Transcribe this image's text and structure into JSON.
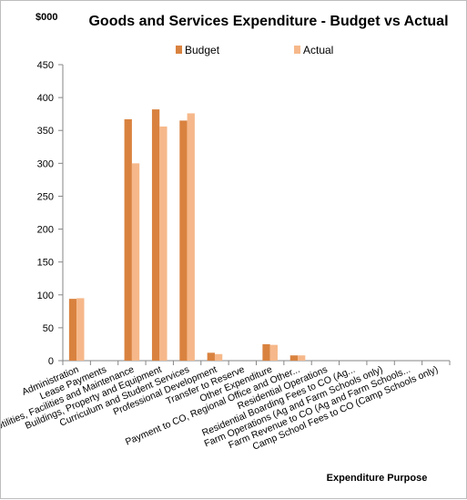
{
  "chart_data": {
    "type": "bar",
    "title": "Goods and Services Expenditure - Budget vs Actual",
    "ylabel": "$000",
    "xlabel": "Expenditure Purpose",
    "ylim": [
      0,
      450
    ],
    "yticks": [
      0,
      50,
      100,
      150,
      200,
      250,
      300,
      350,
      400,
      450
    ],
    "grid": false,
    "legend": "top",
    "categories": [
      "Administration",
      "Lease Payments",
      "Utilities, Facilities and Maintenance",
      "Buildings, Property and Equipment",
      "Curriculum and Student Services",
      "Professional Development",
      "Transfer to Reserve",
      "Other Expenditure",
      "Payment to CO, Regional Office and Other...",
      "Residential Operations",
      "Residential Boarding Fees to CO (Ag...",
      "Farm Operations (Ag and Farm Schools only)",
      "Farm Revenue to CO (Ag and Farm Schools...",
      "Camp School Fees to CO (Camp Schools only)"
    ],
    "series": [
      {
        "name": "Budget",
        "color": "#D9823F",
        "values": [
          94,
          0,
          367,
          382,
          365,
          12,
          0,
          25,
          8,
          0,
          0,
          0,
          0,
          0
        ]
      },
      {
        "name": "Actual",
        "color": "#F6B88A",
        "values": [
          95,
          0,
          300,
          356,
          376,
          10,
          0,
          24,
          8,
          0,
          0,
          0,
          0,
          0
        ]
      }
    ]
  }
}
